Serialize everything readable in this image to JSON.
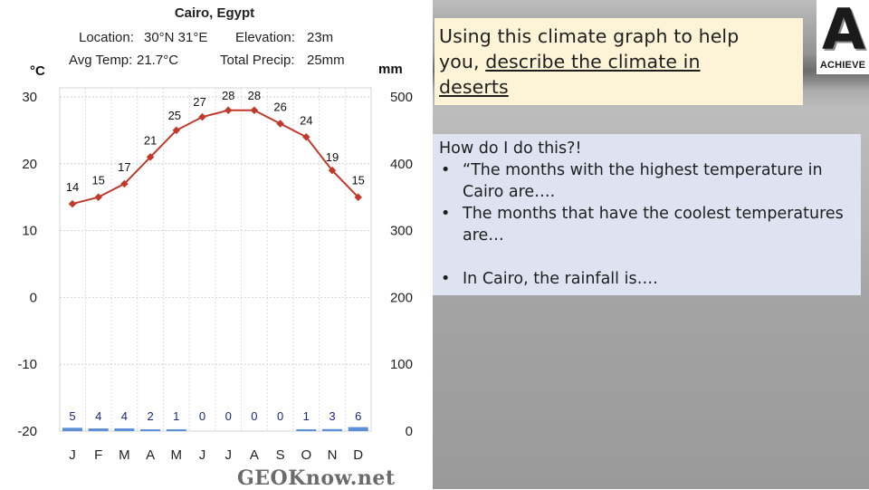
{
  "header": {
    "title": "Cairo, Egypt",
    "location_label": "Location:",
    "location_value": "30°N 31°E",
    "elevation_label": "Elevation:",
    "elevation_value": "23m",
    "avg_temp_label": "Avg Temp:",
    "avg_temp_value": "21.7°C",
    "total_precip_label": "Total Precip:",
    "total_precip_value": "25mm"
  },
  "credit": "GEOKnow.net",
  "question": {
    "line1": "Using this climate graph to help",
    "line2_prefix": "you, ",
    "line2_underlined": "describe the climate in",
    "line3_underlined": "deserts"
  },
  "logo": {
    "letter": "A",
    "text": "ACHIEVE"
  },
  "hints": {
    "heading": "How do I do this?!",
    "items": [
      "“The months with the highest temperature in Cairo are….",
      "The months that have the coolest temperatures are…",
      "In Cairo, the rainfall is…."
    ],
    "bullet": "•"
  },
  "chart_data": {
    "type": "line",
    "title": "Cairo, Egypt",
    "categories": [
      "J",
      "F",
      "M",
      "A",
      "M",
      "J",
      "J",
      "A",
      "S",
      "O",
      "N",
      "D"
    ],
    "series": [
      {
        "name": "Temperature",
        "unit": "°C",
        "values": [
          14,
          15,
          17,
          21,
          25,
          27,
          28,
          28,
          26,
          24,
          19,
          15
        ],
        "color": "#c0392b"
      },
      {
        "name": "Precipitation",
        "unit": "mm",
        "values": [
          5,
          4,
          4,
          2,
          1,
          0,
          0,
          0,
          0,
          1,
          3,
          6
        ],
        "color": "#5b8fd6"
      }
    ],
    "left_axis": {
      "label": "°C",
      "range": [
        -20,
        30
      ],
      "ticks": [
        30,
        20,
        10,
        0,
        -10,
        -20
      ]
    },
    "right_axis": {
      "label": "mm",
      "range": [
        0,
        500
      ],
      "ticks": [
        500,
        400,
        300,
        200,
        100,
        0
      ]
    },
    "grid": true
  }
}
